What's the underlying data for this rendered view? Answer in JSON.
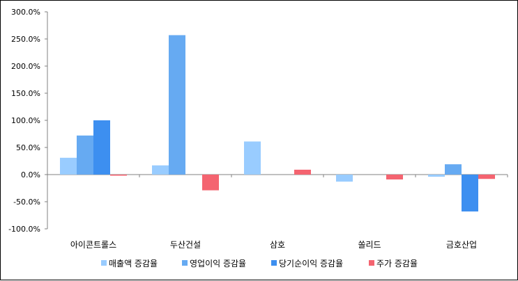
{
  "chart_data": {
    "type": "bar",
    "categories": [
      "아이콘트롤스",
      "두산건설",
      "삼호",
      "쏠리드",
      "금호산업"
    ],
    "series": [
      {
        "name": "매출액 증감율",
        "color": "#99ccff",
        "values": [
          31,
          17,
          61,
          -13,
          -4
        ]
      },
      {
        "name": "영업이익 증감율",
        "color": "#66aaf2",
        "values": [
          72,
          257,
          0,
          0,
          19
        ]
      },
      {
        "name": "당기순이익 증감율",
        "color": "#3d8ff0",
        "values": [
          100,
          0,
          0,
          0,
          -68
        ]
      },
      {
        "name": "주가 증감율",
        "color": "#f46470",
        "values": [
          -2,
          -29,
          9,
          -9,
          -8
        ]
      }
    ],
    "ylim": [
      -100,
      300
    ],
    "ytick_step": 50,
    "ytick_labels": [
      "300.0%",
      "250.0%",
      "200.0%",
      "150.0%",
      "100.0%",
      "50.0%",
      "0.0%",
      "-50.0%",
      "-100.0%"
    ],
    "grid": false,
    "legend": "bottom"
  }
}
